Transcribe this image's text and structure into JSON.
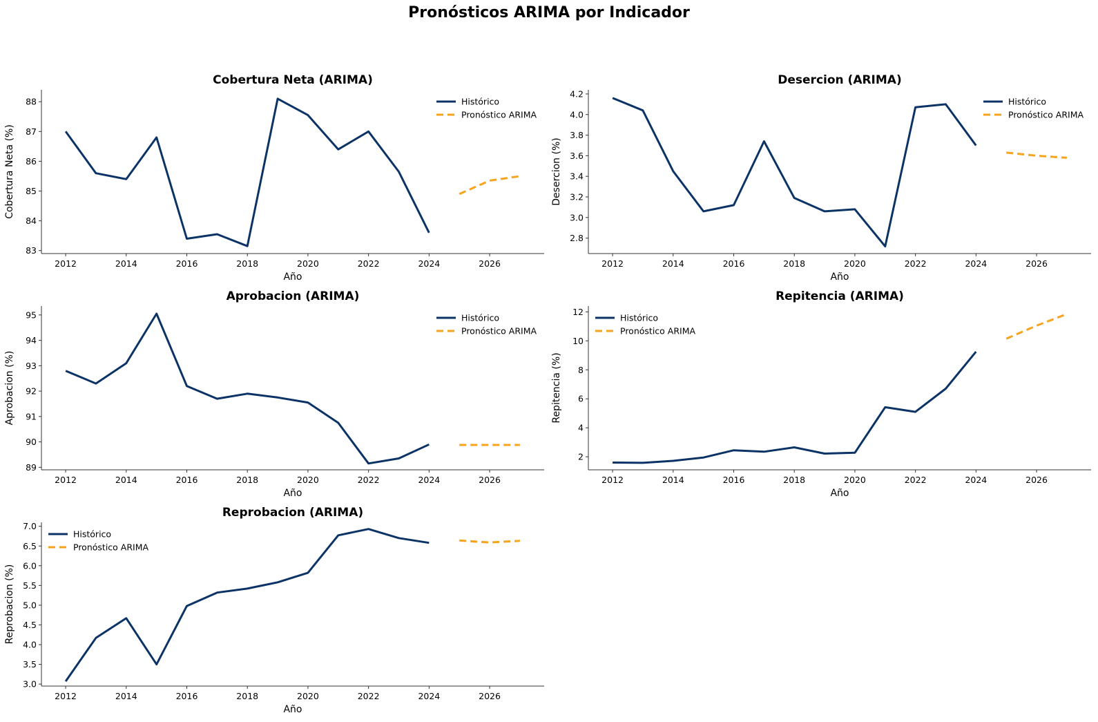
{
  "figure": {
    "title": "Pronósticos ARIMA por Indicador"
  },
  "colors": {
    "historico": "#0b3366",
    "pronostico": "#f9a21b",
    "axis": "#333333"
  },
  "chart_data": [
    {
      "type": "line",
      "title": "Cobertura Neta (ARIMA)",
      "xlabel": "Año",
      "ylabel": "Cobertura Neta (%)",
      "xlim": [
        2011.2,
        2027.8
      ],
      "ylim": [
        82.9,
        88.4
      ],
      "xticks": [
        2012,
        2014,
        2016,
        2018,
        2020,
        2022,
        2024,
        2026
      ],
      "yticks": [
        83,
        84,
        85,
        86,
        87,
        88
      ],
      "ytick_labels": [
        "83",
        "84",
        "85",
        "86",
        "87",
        "88"
      ],
      "legend_position": "upper right",
      "grid": false,
      "series": [
        {
          "name": "Histórico",
          "style": "solid",
          "x": [
            2012,
            2013,
            2014,
            2015,
            2016,
            2017,
            2018,
            2019,
            2020,
            2021,
            2022,
            2023,
            2024
          ],
          "y": [
            87.0,
            85.6,
            85.4,
            86.8,
            83.4,
            83.55,
            83.15,
            88.1,
            87.55,
            86.4,
            87.0,
            85.65,
            83.6
          ]
        },
        {
          "name": "Pronóstico ARIMA",
          "style": "dashed",
          "x": [
            2025,
            2026,
            2027
          ],
          "y": [
            84.9,
            85.35,
            85.5
          ]
        }
      ]
    },
    {
      "type": "line",
      "title": "Desercion (ARIMA)",
      "xlabel": "Año",
      "ylabel": "Desercion (%)",
      "xlim": [
        2011.2,
        2027.8
      ],
      "ylim": [
        2.65,
        4.24
      ],
      "xticks": [
        2012,
        2014,
        2016,
        2018,
        2020,
        2022,
        2024,
        2026
      ],
      "yticks": [
        2.8,
        3.0,
        3.2,
        3.4,
        3.6,
        3.8,
        4.0,
        4.2
      ],
      "ytick_labels": [
        "2.8",
        "3.0",
        "3.2",
        "3.4",
        "3.6",
        "3.8",
        "4.0",
        "4.2"
      ],
      "legend_position": "upper right",
      "grid": false,
      "series": [
        {
          "name": "Histórico",
          "style": "solid",
          "x": [
            2012,
            2013,
            2014,
            2015,
            2016,
            2017,
            2018,
            2019,
            2020,
            2021,
            2022,
            2023,
            2024
          ],
          "y": [
            4.16,
            4.04,
            3.45,
            3.06,
            3.12,
            3.74,
            3.19,
            3.06,
            3.08,
            2.72,
            4.07,
            4.1,
            3.7
          ]
        },
        {
          "name": "Pronóstico ARIMA",
          "style": "dashed",
          "x": [
            2025,
            2026,
            2027
          ],
          "y": [
            3.63,
            3.6,
            3.58
          ]
        }
      ]
    },
    {
      "type": "line",
      "title": "Aprobacion (ARIMA)",
      "xlabel": "Año",
      "ylabel": "Aprobacion (%)",
      "xlim": [
        2011.2,
        2027.8
      ],
      "ylim": [
        88.9,
        95.35
      ],
      "xticks": [
        2012,
        2014,
        2016,
        2018,
        2020,
        2022,
        2024,
        2026
      ],
      "yticks": [
        89,
        90,
        91,
        92,
        93,
        94,
        95
      ],
      "ytick_labels": [
        "89",
        "90",
        "91",
        "92",
        "93",
        "94",
        "95"
      ],
      "legend_position": "upper right",
      "grid": false,
      "series": [
        {
          "name": "Histórico",
          "style": "solid",
          "x": [
            2012,
            2013,
            2014,
            2015,
            2016,
            2017,
            2018,
            2019,
            2020,
            2021,
            2022,
            2023,
            2024
          ],
          "y": [
            92.8,
            92.3,
            93.1,
            95.05,
            92.2,
            91.7,
            91.9,
            91.75,
            91.55,
            90.75,
            89.15,
            89.35,
            89.9
          ]
        },
        {
          "name": "Pronóstico ARIMA",
          "style": "dashed",
          "x": [
            2025,
            2026,
            2027
          ],
          "y": [
            89.88,
            89.88,
            89.88
          ]
        }
      ]
    },
    {
      "type": "line",
      "title": "Repitencia (ARIMA)",
      "xlabel": "Año",
      "ylabel": "Repitencia (%)",
      "xlim": [
        2011.2,
        2027.8
      ],
      "ylim": [
        1.1,
        12.4
      ],
      "xticks": [
        2012,
        2014,
        2016,
        2018,
        2020,
        2022,
        2024,
        2026
      ],
      "yticks": [
        2,
        4,
        6,
        8,
        10,
        12
      ],
      "ytick_labels": [
        "2",
        "4",
        "6",
        "8",
        "10",
        "12"
      ],
      "legend_position": "upper left",
      "grid": false,
      "series": [
        {
          "name": "Histórico",
          "style": "solid",
          "x": [
            2012,
            2013,
            2014,
            2015,
            2016,
            2017,
            2018,
            2019,
            2020,
            2021,
            2022,
            2023,
            2024
          ],
          "y": [
            1.6,
            1.58,
            1.72,
            1.95,
            2.45,
            2.35,
            2.65,
            2.22,
            2.28,
            5.42,
            5.1,
            6.7,
            9.25
          ]
        },
        {
          "name": "Pronóstico ARIMA",
          "style": "dashed",
          "x": [
            2025,
            2026,
            2027
          ],
          "y": [
            10.15,
            11.05,
            11.85
          ]
        }
      ]
    },
    {
      "type": "line",
      "title": "Reprobacion (ARIMA)",
      "xlabel": "Año",
      "ylabel": "Reprobacion (%)",
      "xlim": [
        2011.2,
        2027.8
      ],
      "ylim": [
        2.95,
        7.1
      ],
      "xticks": [
        2012,
        2014,
        2016,
        2018,
        2020,
        2022,
        2024,
        2026
      ],
      "yticks": [
        3.0,
        3.5,
        4.0,
        4.5,
        5.0,
        5.5,
        6.0,
        6.5,
        7.0
      ],
      "ytick_labels": [
        "3.0",
        "3.5",
        "4.0",
        "4.5",
        "5.0",
        "5.5",
        "6.0",
        "6.5",
        "7.0"
      ],
      "legend_position": "upper left",
      "grid": false,
      "series": [
        {
          "name": "Histórico",
          "style": "solid",
          "x": [
            2012,
            2013,
            2014,
            2015,
            2016,
            2017,
            2018,
            2019,
            2020,
            2021,
            2022,
            2023,
            2024
          ],
          "y": [
            3.07,
            4.17,
            4.67,
            3.5,
            4.98,
            5.32,
            5.42,
            5.58,
            5.82,
            6.77,
            6.93,
            6.7,
            6.58
          ]
        },
        {
          "name": "Pronóstico ARIMA",
          "style": "dashed",
          "x": [
            2025,
            2026,
            2027
          ],
          "y": [
            6.64,
            6.59,
            6.63
          ]
        }
      ]
    }
  ]
}
